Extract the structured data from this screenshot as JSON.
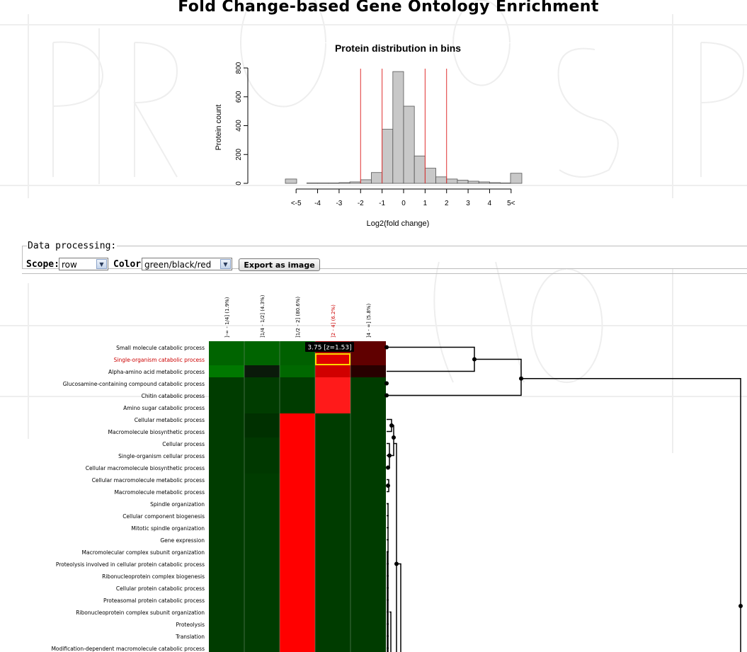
{
  "page": {
    "title": "Fold Change-based Gene Ontology Enrichment"
  },
  "histogram": {
    "title": "Protein distribution in bins",
    "ylabel": "Protein count",
    "xlabel": "Log2(fold change)",
    "y_ticks": [
      "0",
      "200",
      "400",
      "600",
      "800"
    ],
    "x_ticks": [
      "<-5",
      "-4",
      "-3",
      "-2",
      "-1",
      "0",
      "1",
      "2",
      "3",
      "4",
      "5<"
    ],
    "threshold_lines": [
      -2,
      -1,
      1,
      2
    ],
    "bars": [
      {
        "label": "<-5",
        "count": 30
      },
      {
        "label": "-5..-4.5",
        "count": 0
      },
      {
        "label": "-4.5..-4",
        "count": 3
      },
      {
        "label": "-4..-3.5",
        "count": 3
      },
      {
        "label": "-3.5..-3",
        "count": 3
      },
      {
        "label": "-3..-2.5",
        "count": 5
      },
      {
        "label": "-2.5..-2",
        "count": 10
      },
      {
        "label": "-2..-1.5",
        "count": 25
      },
      {
        "label": "-1.5..-1",
        "count": 75
      },
      {
        "label": "-1..-0.5",
        "count": 375
      },
      {
        "label": "-0.5..0",
        "count": 775
      },
      {
        "label": "0..0.5",
        "count": 535
      },
      {
        "label": "0.5..1",
        "count": 190
      },
      {
        "label": "1..1.5",
        "count": 105
      },
      {
        "label": "1.5..2",
        "count": 45
      },
      {
        "label": "2..2.5",
        "count": 30
      },
      {
        "label": "2.5..3",
        "count": 22
      },
      {
        "label": "3..3.5",
        "count": 15
      },
      {
        "label": "3.5..4",
        "count": 10
      },
      {
        "label": "4..4.5",
        "count": 5
      },
      {
        "label": "4.5..5",
        "count": 3
      },
      {
        "label": "5<",
        "count": 70
      }
    ]
  },
  "controls": {
    "legend": "Data processing:",
    "scope_label": "Scope:",
    "scope_value": "row",
    "color_label": "Color:",
    "color_value": "green/black/red",
    "export_button": "Export as image"
  },
  "heatmap": {
    "columns": [
      {
        "label": "]-∞ - 1/4] (1.9%)",
        "highlight": false
      },
      {
        "label": "]1/4 - 1/2] (4.3%)",
        "highlight": false
      },
      {
        "label": "]1/2 - 2] (80.6%)",
        "highlight": false
      },
      {
        "label": "]2 - 4] (6.2%)",
        "highlight": true
      },
      {
        "label": "]4 - ∞] (5.8%)",
        "highlight": false
      }
    ],
    "rows": [
      {
        "label": "Small molecule catabolic process",
        "highlight": false
      },
      {
        "label": "Single-organism catabolic process",
        "highlight": true
      },
      {
        "label": "Alpha-amino acid metabolic process",
        "highlight": false
      },
      {
        "label": "Glucosamine-containing compound catabolic process",
        "highlight": false
      },
      {
        "label": "Chitin catabolic process",
        "highlight": false
      },
      {
        "label": "Amino sugar catabolic process",
        "highlight": false
      },
      {
        "label": "Cellular metabolic process",
        "highlight": false
      },
      {
        "label": "Macromolecule biosynthetic process",
        "highlight": false
      },
      {
        "label": "Cellular process",
        "highlight": false
      },
      {
        "label": "Single-organism cellular process",
        "highlight": false
      },
      {
        "label": "Cellular macromolecule biosynthetic process",
        "highlight": false
      },
      {
        "label": "Cellular macromolecule metabolic process",
        "highlight": false
      },
      {
        "label": "Macromolecule metabolic process",
        "highlight": false
      },
      {
        "label": "Spindle organization",
        "highlight": false
      },
      {
        "label": "Cellular component biogenesis",
        "highlight": false
      },
      {
        "label": "Mitotic spindle organization",
        "highlight": false
      },
      {
        "label": "Gene expression",
        "highlight": false
      },
      {
        "label": "Macromolecular complex subunit organization",
        "highlight": false
      },
      {
        "label": "Proteolysis involved in cellular protein catabolic process",
        "highlight": false
      },
      {
        "label": "Ribonucleoprotein complex biogenesis",
        "highlight": false
      },
      {
        "label": "Cellular protein catabolic process",
        "highlight": false
      },
      {
        "label": "Proteasomal protein catabolic process",
        "highlight": false
      },
      {
        "label": "Ribonucleoprotein complex subunit organization",
        "highlight": false
      },
      {
        "label": "Proteolysis",
        "highlight": false
      },
      {
        "label": "Translation",
        "highlight": false
      },
      {
        "label": "Modification-dependent macromolecule catabolic process",
        "highlight": false
      }
    ],
    "cell_colors": [
      [
        "#006400",
        "#006400",
        "#006000",
        "#a00000",
        "#600000"
      ],
      [
        "#006400",
        "#006400",
        "#006000",
        "#e00000",
        "#600000"
      ],
      [
        "#007800",
        "#0a1a0a",
        "#006800",
        "#d00000",
        "#280000"
      ],
      [
        "#003c00",
        "#003c00",
        "#003c00",
        "#ff1a1a",
        "#003c00"
      ],
      [
        "#003c00",
        "#003c00",
        "#003c00",
        "#ff1a1a",
        "#003c00"
      ],
      [
        "#003c00",
        "#003c00",
        "#003c00",
        "#ff1a1a",
        "#003c00"
      ],
      [
        "#003c00",
        "#003000",
        "#ff0000",
        "#003c00",
        "#003c00"
      ],
      [
        "#003c00",
        "#003000",
        "#ff0000",
        "#003c00",
        "#003c00"
      ],
      [
        "#003c00",
        "#003800",
        "#ff0000",
        "#003c00",
        "#003c00"
      ],
      [
        "#003c00",
        "#003800",
        "#ff0000",
        "#003c00",
        "#003c00"
      ],
      [
        "#003c00",
        "#003800",
        "#ff0000",
        "#003c00",
        "#003c00"
      ],
      [
        "#003c00",
        "#003c00",
        "#ff0000",
        "#003c00",
        "#003c00"
      ],
      [
        "#003c00",
        "#003c00",
        "#ff0000",
        "#003c00",
        "#003c00"
      ],
      [
        "#003c00",
        "#003c00",
        "#ff0000",
        "#003c00",
        "#003c00"
      ],
      [
        "#003c00",
        "#003c00",
        "#ff0000",
        "#003c00",
        "#003c00"
      ],
      [
        "#003c00",
        "#003c00",
        "#ff0000",
        "#003c00",
        "#003c00"
      ],
      [
        "#003c00",
        "#003c00",
        "#ff0000",
        "#003c00",
        "#003c00"
      ],
      [
        "#003c00",
        "#003c00",
        "#ff0000",
        "#003c00",
        "#003c00"
      ],
      [
        "#003c00",
        "#003c00",
        "#ff0000",
        "#003c00",
        "#003c00"
      ],
      [
        "#003c00",
        "#003c00",
        "#ff0000",
        "#003c00",
        "#003c00"
      ],
      [
        "#003c00",
        "#003c00",
        "#ff0000",
        "#003c00",
        "#003c00"
      ],
      [
        "#003c00",
        "#003c00",
        "#ff0000",
        "#003c00",
        "#003c00"
      ],
      [
        "#003c00",
        "#003c00",
        "#ff0000",
        "#003c00",
        "#003c00"
      ],
      [
        "#003c00",
        "#003c00",
        "#ff0000",
        "#003c00",
        "#003c00"
      ],
      [
        "#003c00",
        "#003c00",
        "#ff0000",
        "#003c00",
        "#003c00"
      ],
      [
        "#003c00",
        "#003c00",
        "#ff0000",
        "#003c00",
        "#003c00"
      ]
    ],
    "selected_cell": {
      "row": 1,
      "col": 3
    },
    "tooltip": "3.75 [z=1.53]",
    "colors": {
      "highlight_text": "#cc0000",
      "selection_border": "#ffd700",
      "tooltip_bg": "#000000"
    }
  }
}
